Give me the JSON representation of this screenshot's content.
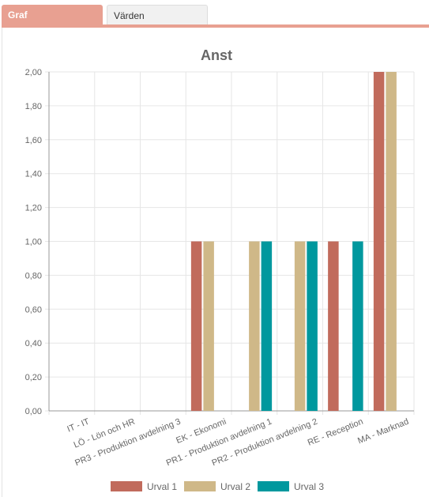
{
  "tabs": [
    {
      "label": "Graf",
      "active": true
    },
    {
      "label": "Värden",
      "active": false
    }
  ],
  "colors": {
    "accent": "#e8a091",
    "series": [
      "#c16b5c",
      "#cfb888",
      "#00989e"
    ],
    "grid": "#e6e6e6",
    "axis": "#999999",
    "text": "#666666"
  },
  "chart_data": {
    "type": "bar",
    "title": "Anst",
    "categories": [
      "IT - IT",
      "LÖ - Lön och HR",
      "PR3 - Produktion avdelning 3",
      "EK - Ekonomi",
      "PR1 - Produktion avdelning 1",
      "PR2 - Produktion avdelning 2",
      "RE - Reception",
      "MA - Marknad"
    ],
    "series": [
      {
        "name": "Urval 1",
        "values": [
          0,
          0,
          0,
          1,
          0,
          0,
          1,
          2
        ]
      },
      {
        "name": "Urval 2",
        "values": [
          0,
          0,
          0,
          1,
          1,
          1,
          0,
          2
        ]
      },
      {
        "name": "Urval 3",
        "values": [
          0,
          0,
          0,
          0,
          1,
          1,
          1,
          0
        ]
      }
    ],
    "ylim": [
      0,
      2
    ],
    "yticks": [
      "0,00",
      "0,20",
      "0,40",
      "0,60",
      "0,80",
      "1,00",
      "1,20",
      "1,40",
      "1,60",
      "1,80",
      "2,00"
    ],
    "grid": true,
    "legend_position": "bottom"
  }
}
